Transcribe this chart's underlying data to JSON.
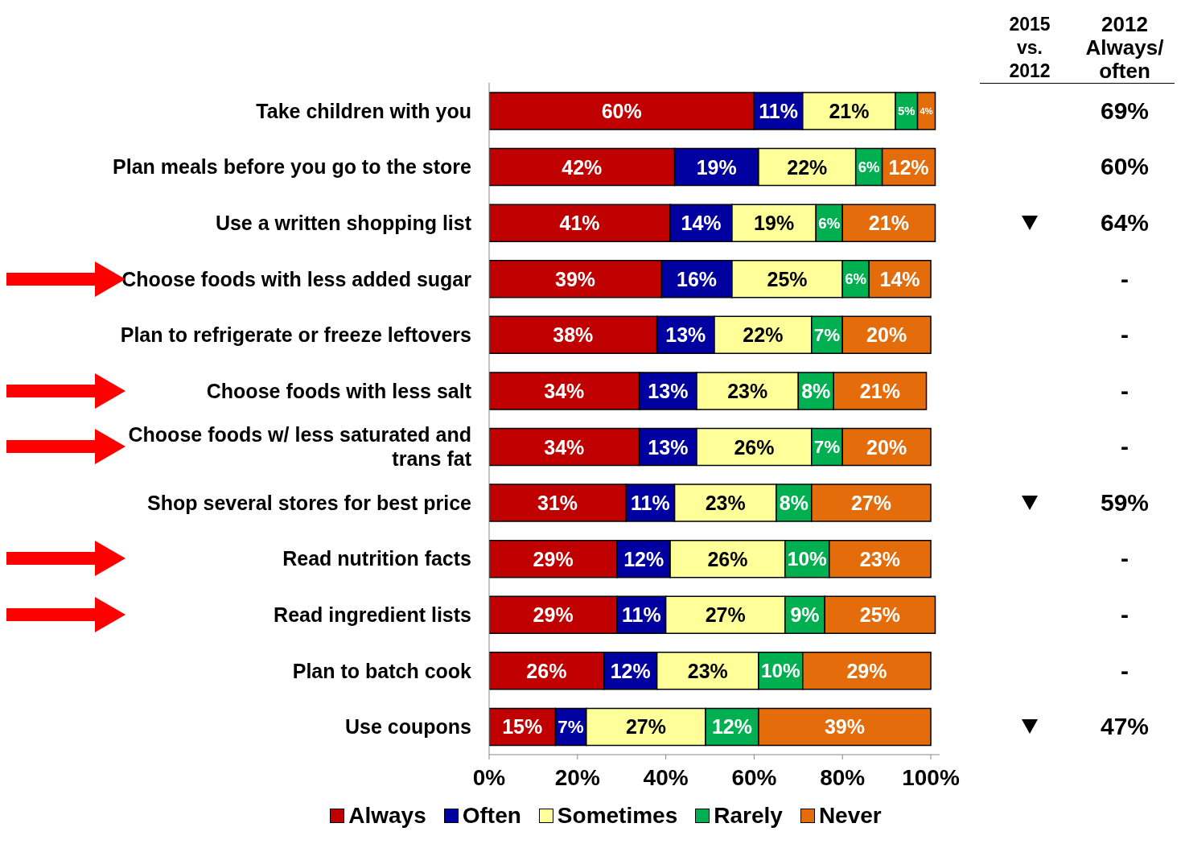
{
  "chart_data": {
    "type": "bar",
    "orientation": "horizontal",
    "stacked": true,
    "legend": "bottom",
    "categories": [
      "Take children with you",
      "Plan meals before you go to the store",
      "Use a written shopping list",
      "Choose foods with less added sugar",
      "Plan to refrigerate or freeze leftovers",
      "Choose foods with less salt",
      "Choose foods w/ less saturated and trans fat",
      "Shop several stores for best price",
      "Read nutrition facts",
      "Read ingredient lists",
      "Plan to batch cook",
      "Use coupons"
    ],
    "series": [
      {
        "name": "Always",
        "color": "#c00000",
        "values": [
          60,
          42,
          41,
          39,
          38,
          34,
          34,
          31,
          29,
          29,
          26,
          15
        ],
        "value_labels": [
          "60%",
          "42%",
          "41%",
          "39%",
          "38%",
          "34%",
          "34%",
          "31%",
          "29%",
          "29%",
          "26%",
          "15%"
        ]
      },
      {
        "name": "Often",
        "color": "#0000a0",
        "values": [
          11,
          19,
          14,
          16,
          13,
          13,
          13,
          11,
          12,
          11,
          12,
          7
        ],
        "value_labels": [
          "11%",
          "19%",
          "14%",
          "16%",
          "13%",
          "13%",
          "13%",
          "11%",
          "12%",
          "11%",
          "12%",
          "7%"
        ]
      },
      {
        "name": "Sometimes",
        "color": "#ffff99",
        "values": [
          21,
          22,
          19,
          25,
          22,
          23,
          26,
          23,
          26,
          27,
          23,
          27
        ],
        "value_labels": [
          "21%",
          "22%",
          "19%",
          "25%",
          "22%",
          "23%",
          "26%",
          "23%",
          "26%",
          "27%",
          "23%",
          "27%"
        ]
      },
      {
        "name": "Rarely",
        "color": "#00b050",
        "values": [
          5,
          6,
          6,
          6,
          7,
          8,
          7,
          8,
          10,
          9,
          10,
          12
        ],
        "value_labels": [
          "5%",
          "6%",
          "6%",
          "6%",
          "7%",
          "8%",
          "7%",
          "8%",
          "10%",
          "9%",
          "10%",
          "12%"
        ]
      },
      {
        "name": "Never",
        "color": "#e46c0a",
        "values": [
          4,
          12,
          21,
          14,
          20,
          21,
          20,
          27,
          23,
          25,
          29,
          39
        ],
        "value_labels": [
          "4%",
          "12%",
          "21%",
          "14%",
          "20%",
          "21%",
          "20%",
          "27%",
          "23%",
          "25%",
          "29%",
          "39%"
        ]
      }
    ],
    "xlim": [
      0,
      102
    ],
    "xticks": [
      {
        "value": 0,
        "label": "0%"
      },
      {
        "value": 20,
        "label": "20%"
      },
      {
        "value": 40,
        "label": "40%"
      },
      {
        "value": 60,
        "label": "60%"
      },
      {
        "value": 80,
        "label": "80%"
      },
      {
        "value": 100,
        "label": "100%"
      }
    ],
    "annotations": [
      "2015 vs. 2012",
      "2012 Always/ often",
      "69%",
      "60%",
      "64%",
      "-",
      "-",
      "-",
      "-",
      "59%",
      "-",
      "-",
      "-",
      "47%"
    ]
  }
}
